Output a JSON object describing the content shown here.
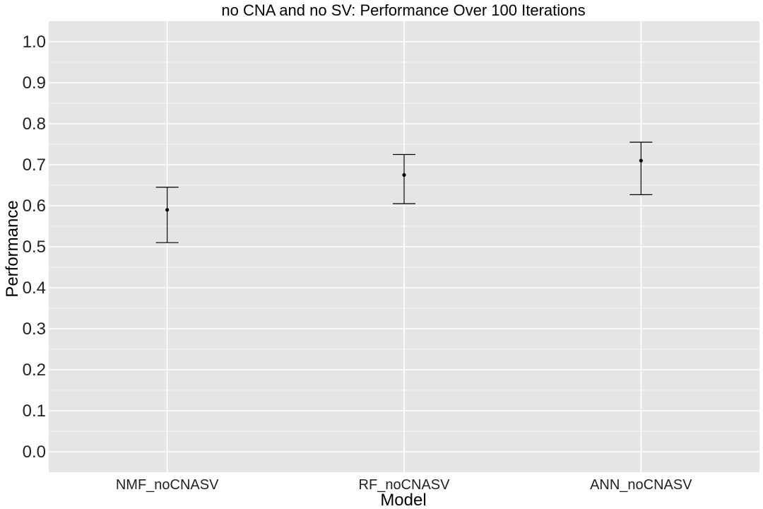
{
  "chart_data": {
    "type": "errorbar",
    "title": "no CNA and no SV: Performance Over 100 Iterations",
    "xlabel": "Model",
    "ylabel": "Performance",
    "categories": [
      "NMF_noCNASV",
      "RF_noCNASV",
      "ANN_noCNASV"
    ],
    "points": [
      {
        "model": "NMF_noCNASV",
        "mean": 0.59,
        "lower": 0.51,
        "upper": 0.645
      },
      {
        "model": "RF_noCNASV",
        "mean": 0.675,
        "lower": 0.605,
        "upper": 0.725
      },
      {
        "model": "ANN_noCNASV",
        "mean": 0.71,
        "lower": 0.627,
        "upper": 0.755
      }
    ],
    "yticks": [
      "0.0",
      "0.1",
      "0.2",
      "0.3",
      "0.4",
      "0.5",
      "0.6",
      "0.7",
      "0.8",
      "0.9",
      "1.0"
    ],
    "ylim": [
      -0.05,
      1.05
    ],
    "grid": true,
    "colors": {
      "panel": "#e5e5e5",
      "grid": "#ffffff",
      "marks": "#000000"
    }
  }
}
